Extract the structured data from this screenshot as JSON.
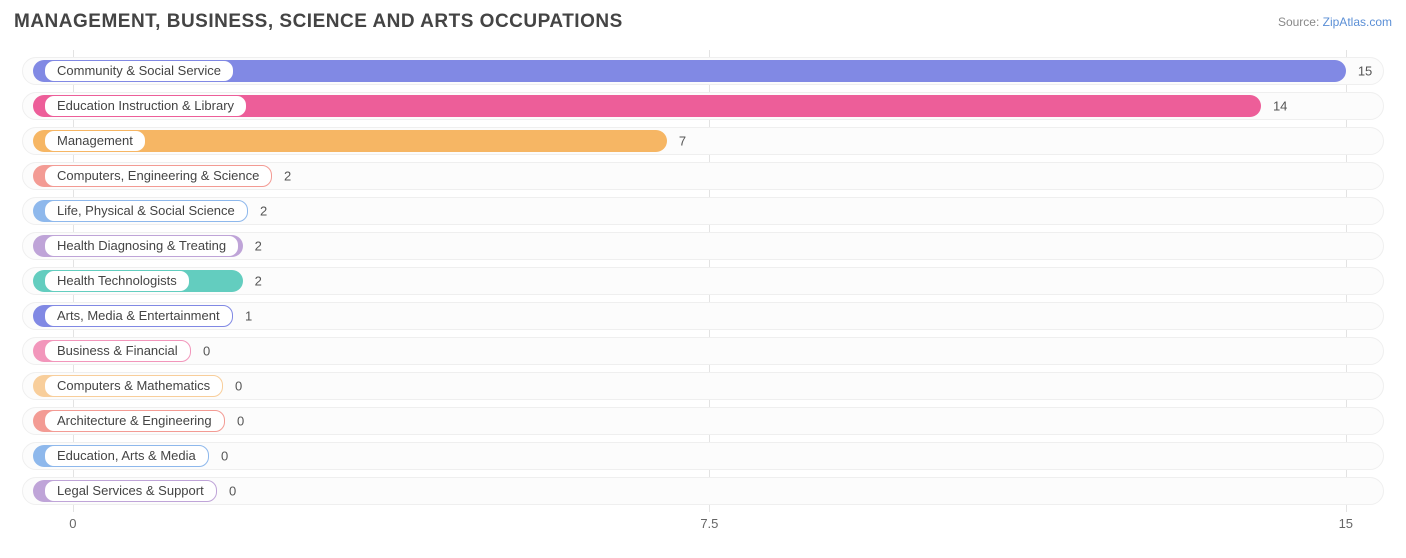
{
  "title": "MANAGEMENT, BUSINESS, SCIENCE AND ARTS OCCUPATIONS",
  "source_prefix": "Source: ",
  "source_link": "ZipAtlas.com",
  "chart": {
    "type": "bar-horizontal",
    "xmin": -0.6,
    "xmax": 15.45,
    "xticks": [
      0,
      7.5,
      15
    ],
    "grid_color": "#e3e3e3",
    "track_bg": "#fcfcfc",
    "track_border": "#efefef",
    "bar_min_value": -0.5,
    "series": [
      {
        "label": "Community & Social Service",
        "value": 15,
        "color": "#8189e4"
      },
      {
        "label": "Education Instruction & Library",
        "value": 14,
        "color": "#ed5e99"
      },
      {
        "label": "Management",
        "value": 7,
        "color": "#f6b664"
      },
      {
        "label": "Computers, Engineering & Science",
        "value": 2,
        "color": "#f39b94"
      },
      {
        "label": "Life, Physical & Social Science",
        "value": 2,
        "color": "#8eb8ec"
      },
      {
        "label": "Health Diagnosing & Treating",
        "value": 2,
        "color": "#bfa4d8"
      },
      {
        "label": "Health Technologists",
        "value": 2,
        "color": "#63cdbf"
      },
      {
        "label": "Arts, Media & Entertainment",
        "value": 1,
        "color": "#8189e4"
      },
      {
        "label": "Business & Financial",
        "value": 0,
        "color": "#f296bb"
      },
      {
        "label": "Computers & Mathematics",
        "value": 0,
        "color": "#f8ce9b"
      },
      {
        "label": "Architecture & Engineering",
        "value": 0,
        "color": "#f39b94"
      },
      {
        "label": "Education, Arts & Media",
        "value": 0,
        "color": "#8eb8ec"
      },
      {
        "label": "Legal Services & Support",
        "value": 0,
        "color": "#bfa4d8"
      }
    ]
  }
}
